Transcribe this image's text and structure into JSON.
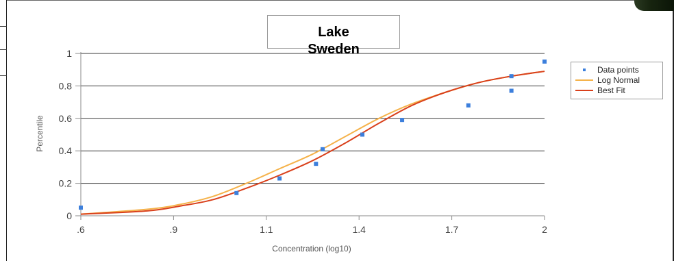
{
  "colors": {
    "points": "#3c7fdc",
    "log_normal": "#f5b24a",
    "best_fit": "#d9401b",
    "grid": "#3a3a3a",
    "axis": "#8a8a8a"
  },
  "chart_data": {
    "type": "line",
    "title": "Lake\nSweden",
    "xlabel": "Concentration (log10)",
    "ylabel": "Percentile",
    "xlim": [
      0.6,
      2.0
    ],
    "ylim": [
      0,
      1
    ],
    "x_ticks": [
      ".6",
      ".9",
      "1.1",
      "1.4",
      "1.7",
      "2"
    ],
    "y_ticks": [
      "0",
      "0.2",
      "0.4",
      "0.6",
      "0.8",
      "1"
    ],
    "grid": true,
    "legend_position": "top-right",
    "series": [
      {
        "name": "Data points",
        "kind": "scatter",
        "points": [
          [
            0.6,
            0.05
          ],
          [
            1.07,
            0.14
          ],
          [
            1.2,
            0.23
          ],
          [
            1.31,
            0.32
          ],
          [
            1.33,
            0.41
          ],
          [
            1.45,
            0.5
          ],
          [
            1.57,
            0.59
          ],
          [
            1.77,
            0.68
          ],
          [
            1.9,
            0.77
          ],
          [
            1.9,
            0.86
          ],
          [
            2.0,
            0.95
          ]
        ]
      },
      {
        "name": "Log Normal",
        "kind": "line",
        "points": [
          [
            0.6,
            0.01
          ],
          [
            0.8,
            0.04
          ],
          [
            0.9,
            0.07
          ],
          [
            1.0,
            0.12
          ],
          [
            1.1,
            0.2
          ],
          [
            1.2,
            0.29
          ],
          [
            1.3,
            0.38
          ],
          [
            1.4,
            0.49
          ],
          [
            1.5,
            0.6
          ],
          [
            1.6,
            0.69
          ],
          [
            1.7,
            0.76
          ],
          [
            1.8,
            0.82
          ],
          [
            1.9,
            0.86
          ],
          [
            2.0,
            0.89
          ]
        ]
      },
      {
        "name": "Best Fit",
        "kind": "line",
        "points": [
          [
            0.6,
            0.01
          ],
          [
            0.8,
            0.03
          ],
          [
            0.9,
            0.06
          ],
          [
            1.0,
            0.1
          ],
          [
            1.1,
            0.17
          ],
          [
            1.2,
            0.25
          ],
          [
            1.3,
            0.34
          ],
          [
            1.4,
            0.45
          ],
          [
            1.5,
            0.57
          ],
          [
            1.6,
            0.68
          ],
          [
            1.7,
            0.76
          ],
          [
            1.8,
            0.82
          ],
          [
            1.9,
            0.86
          ],
          [
            2.0,
            0.89
          ]
        ]
      }
    ]
  }
}
